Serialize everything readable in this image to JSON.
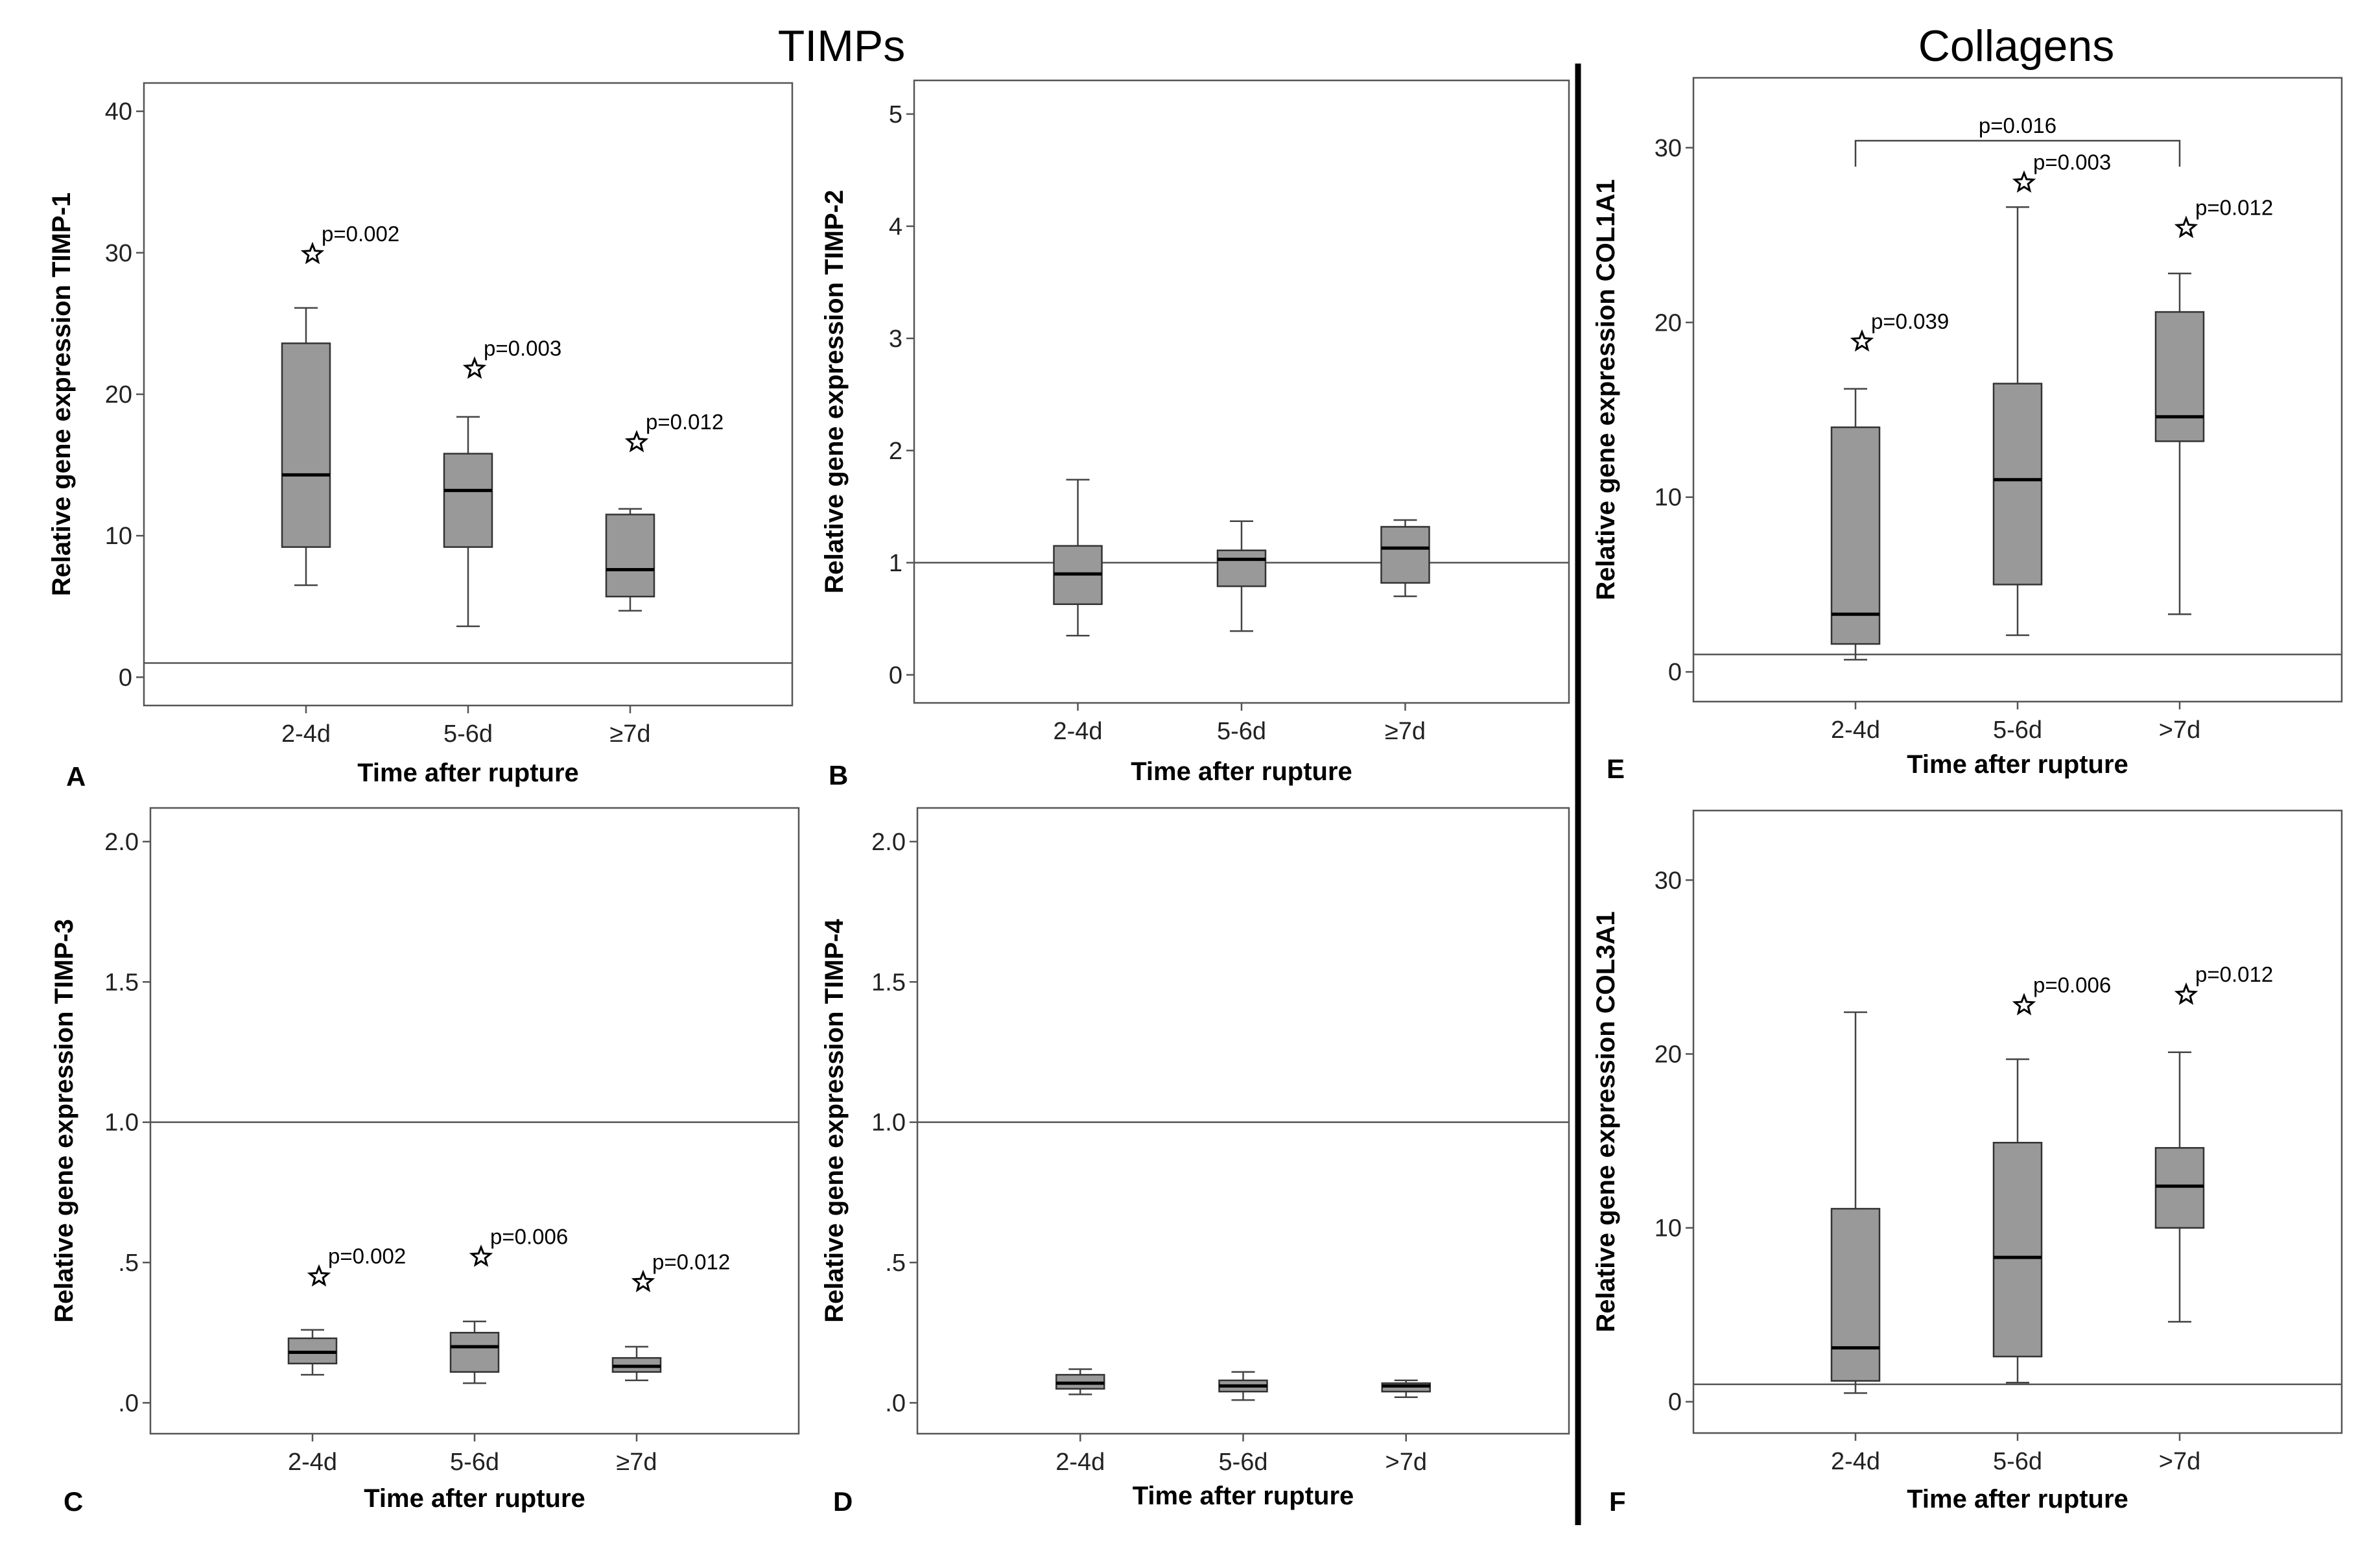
{
  "sections": [
    {
      "title": "TIMPs"
    },
    {
      "title": "Collagens"
    }
  ],
  "chart_data": [
    {
      "type": "box",
      "panel": "A",
      "ylabel": "Relative gene expression TIMP-1",
      "xlabel": "Time after rupture",
      "ylim": [
        -2,
        42
      ],
      "yticks": [
        0,
        10,
        20,
        30,
        40
      ],
      "ytick_labels": [
        "0",
        "10",
        "20",
        "30",
        "40"
      ],
      "reference_line": 1,
      "categories": [
        "2-4d",
        "5-6d",
        "≥7d"
      ],
      "boxes": [
        {
          "min": 6.5,
          "q1": 9.2,
          "median": 14.3,
          "q3": 23.6,
          "max": 26.1
        },
        {
          "min": 3.6,
          "q1": 9.2,
          "median": 13.2,
          "q3": 15.8,
          "max": 18.4
        },
        {
          "min": 4.7,
          "q1": 5.7,
          "median": 7.6,
          "q3": 11.5,
          "max": 11.9
        }
      ],
      "annotations": [
        {
          "star": 29.9,
          "label": "p=0.002"
        },
        {
          "star": 21.8,
          "label": "p=0.003"
        },
        {
          "star": 16.6,
          "label": "p=0.012"
        }
      ]
    },
    {
      "type": "box",
      "panel": "B",
      "ylabel": "Relative gene expression TIMP-2",
      "xlabel": "Time after rupture",
      "ylim": [
        -0.25,
        5.3
      ],
      "yticks": [
        0,
        1,
        2,
        3,
        4,
        5
      ],
      "ytick_labels": [
        "0",
        "1",
        "2",
        "3",
        "4",
        "5"
      ],
      "reference_line": 1,
      "categories": [
        "2-4d",
        "5-6d",
        "≥7d"
      ],
      "boxes": [
        {
          "min": 0.35,
          "q1": 0.63,
          "median": 0.9,
          "q3": 1.15,
          "max": 1.74
        },
        {
          "min": 0.39,
          "q1": 0.79,
          "median": 1.03,
          "q3": 1.11,
          "max": 1.37
        },
        {
          "min": 0.7,
          "q1": 0.82,
          "median": 1.13,
          "q3": 1.32,
          "max": 1.38
        }
      ],
      "annotations": []
    },
    {
      "type": "box",
      "panel": "C",
      "ylabel": "Relative gene expression TIMP-3",
      "xlabel": "Time after rupture",
      "ylim": [
        -0.11,
        2.12
      ],
      "yticks": [
        0,
        0.5,
        1.0,
        1.5,
        2.0
      ],
      "ytick_labels": [
        ".0",
        ".5",
        "1.0",
        "1.5",
        "2.0"
      ],
      "reference_line": 1,
      "categories": [
        "2-4d",
        "5-6d",
        "≥7d"
      ],
      "boxes": [
        {
          "min": 0.1,
          "q1": 0.14,
          "median": 0.18,
          "q3": 0.23,
          "max": 0.26
        },
        {
          "min": 0.07,
          "q1": 0.11,
          "median": 0.2,
          "q3": 0.25,
          "max": 0.29
        },
        {
          "min": 0.08,
          "q1": 0.11,
          "median": 0.13,
          "q3": 0.16,
          "max": 0.2
        }
      ],
      "annotations": [
        {
          "star": 0.45,
          "label": "p=0.002"
        },
        {
          "star": 0.52,
          "label": "p=0.006"
        },
        {
          "star": 0.43,
          "label": "p=0.012"
        }
      ]
    },
    {
      "type": "box",
      "panel": "D",
      "ylabel": "Relative gene expression TIMP-4",
      "xlabel": "Time after rupture",
      "ylim": [
        -0.11,
        2.12
      ],
      "yticks": [
        0,
        0.5,
        1.0,
        1.5,
        2.0
      ],
      "ytick_labels": [
        ".0",
        ".5",
        "1.0",
        "1.5",
        "2.0"
      ],
      "reference_line": 1,
      "categories": [
        "2-4d",
        "5-6d",
        ">7d"
      ],
      "boxes": [
        {
          "min": 0.03,
          "q1": 0.05,
          "median": 0.07,
          "q3": 0.1,
          "max": 0.12
        },
        {
          "min": 0.01,
          "q1": 0.04,
          "median": 0.06,
          "q3": 0.08,
          "max": 0.11
        },
        {
          "min": 0.02,
          "q1": 0.04,
          "median": 0.06,
          "q3": 0.07,
          "max": 0.08
        }
      ],
      "annotations": []
    },
    {
      "type": "box",
      "panel": "E",
      "ylabel": "Relative gene expression COL1A1",
      "xlabel": "Time after rupture",
      "ylim": [
        -1.7,
        34
      ],
      "yticks": [
        0,
        10,
        20,
        30
      ],
      "ytick_labels": [
        "0",
        "10",
        "20",
        "30"
      ],
      "reference_line": 1,
      "categories": [
        "2-4d",
        "5-6d",
        ">7d"
      ],
      "boxes": [
        {
          "min": 0.7,
          "q1": 1.6,
          "median": 3.3,
          "q3": 14.0,
          "max": 16.2
        },
        {
          "min": 2.1,
          "q1": 5.0,
          "median": 11.0,
          "q3": 16.5,
          "max": 26.6
        },
        {
          "min": 3.3,
          "q1": 13.2,
          "median": 14.6,
          "q3": 20.6,
          "max": 22.8
        }
      ],
      "annotations": [
        {
          "star": 18.9,
          "label": "p=0.039"
        },
        {
          "star": 28.0,
          "label": "p=0.003"
        },
        {
          "star": 25.4,
          "label": "p=0.012"
        }
      ],
      "bracket": {
        "from": 0,
        "to": 2,
        "y": 30.4,
        "label": "p=0.016"
      }
    },
    {
      "type": "box",
      "panel": "F",
      "ylabel": "Relative gene expression COL3A1",
      "xlabel": "Time after rupture",
      "ylim": [
        -1.8,
        34
      ],
      "yticks": [
        0,
        10,
        20,
        30
      ],
      "ytick_labels": [
        "0",
        "10",
        "20",
        "30"
      ],
      "reference_line": 1,
      "categories": [
        "2-4d",
        "5-6d",
        ">7d"
      ],
      "boxes": [
        {
          "min": 0.5,
          "q1": 1.2,
          "median": 3.1,
          "q3": 11.1,
          "max": 22.4
        },
        {
          "min": 1.1,
          "q1": 2.6,
          "median": 8.3,
          "q3": 14.9,
          "max": 19.7
        },
        {
          "min": 4.6,
          "q1": 10.0,
          "median": 12.4,
          "q3": 14.6,
          "max": 20.1
        }
      ],
      "annotations": [
        null,
        {
          "star": 22.8,
          "label": "p=0.006"
        },
        {
          "star": 23.4,
          "label": "p=0.012"
        }
      ]
    }
  ]
}
